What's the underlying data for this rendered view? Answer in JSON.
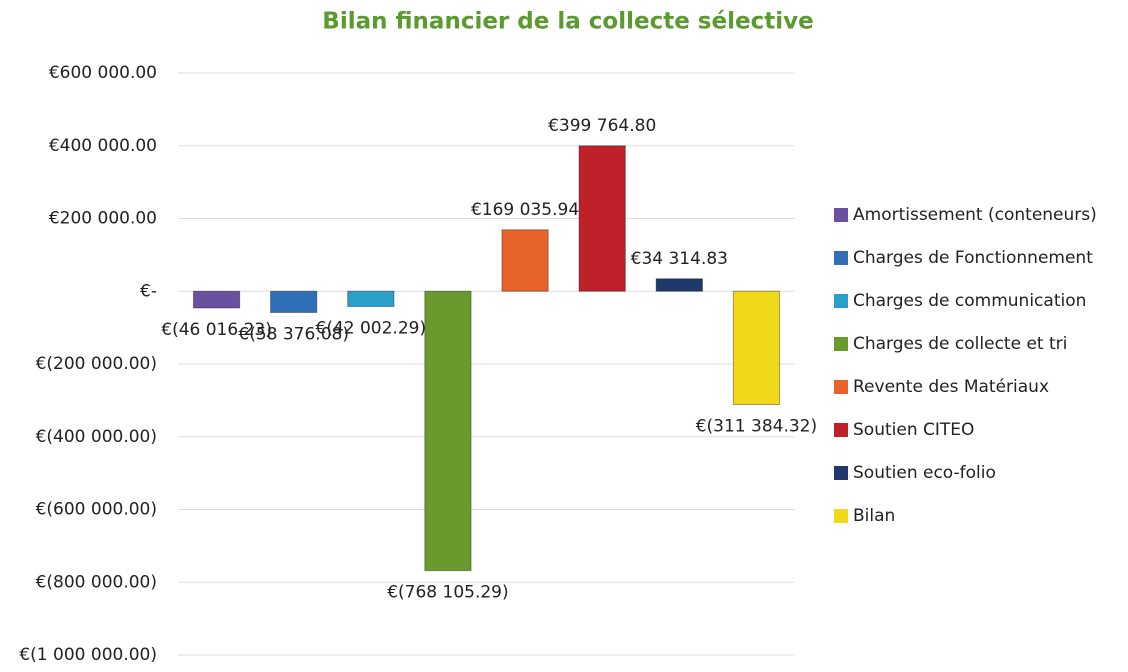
{
  "chart_data": {
    "type": "bar",
    "title": "Bilan financier de la collecte sélective",
    "series": [
      {
        "name": "Amortissement (conteneurs)",
        "color": "#6b4fa0",
        "values": [
          -46016.23
        ],
        "value_labels": [
          "€(46 016.23)"
        ]
      },
      {
        "name": "Charges de Fonctionnement",
        "color": "#2e6fb7",
        "values": [
          -58376.08
        ],
        "value_labels": [
          "€(58 376.08)"
        ]
      },
      {
        "name": "Charges de communication",
        "color": "#2aa0c8",
        "values": [
          -42002.29
        ],
        "value_labels": [
          "€(42 002.29)"
        ]
      },
      {
        "name": "Charges de collecte et tri",
        "color": "#6a9a2e",
        "values": [
          -768105.29
        ],
        "value_labels": [
          "€(768 105.29)"
        ]
      },
      {
        "name": "Revente des Matériaux",
        "color": "#e8632a",
        "values": [
          169035.94
        ],
        "value_labels": [
          "€169 035.94"
        ]
      },
      {
        "name": "Soutien CITEO",
        "color": "#c0202a",
        "values": [
          399764.8
        ],
        "value_labels": [
          "€399 764.80"
        ]
      },
      {
        "name": "Soutien eco-folio",
        "color": "#1f3a6a",
        "values": [
          34314.83
        ],
        "value_labels": [
          "€34 314.83"
        ]
      },
      {
        "name": "Bilan",
        "color": "#f2d81a",
        "values": [
          -311384.32
        ],
        "value_labels": [
          "€(311 384.32)"
        ]
      }
    ],
    "ylim": [
      -1000000,
      600000
    ],
    "yticks": [
      {
        "value": 600000,
        "label": "€600 000.00"
      },
      {
        "value": 400000,
        "label": "€400 000.00"
      },
      {
        "value": 200000,
        "label": "€200 000.00"
      },
      {
        "value": 0,
        "label": "€-"
      },
      {
        "value": -200000,
        "label": "€(200 000.00)"
      },
      {
        "value": -400000,
        "label": "€(400 000.00)"
      },
      {
        "value": -600000,
        "label": "€(600 000.00)"
      },
      {
        "value": -800000,
        "label": "€(800 000.00)"
      },
      {
        "value": -1000000,
        "label": "€(1 000 000.00)"
      }
    ],
    "grid": true,
    "legend": "right"
  }
}
